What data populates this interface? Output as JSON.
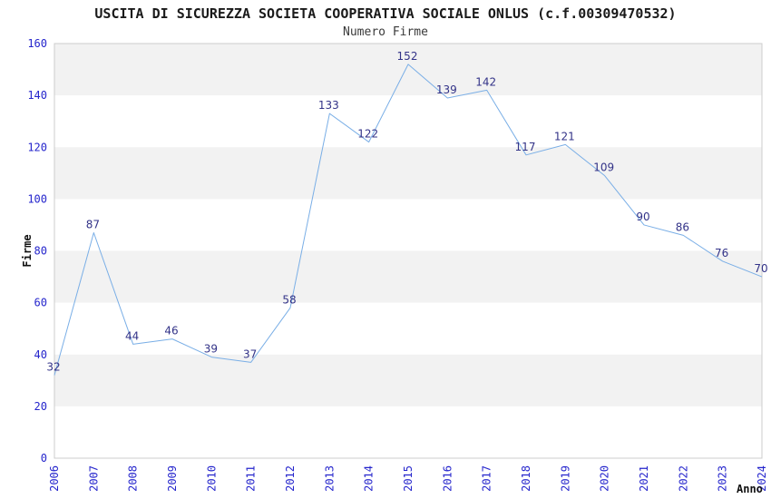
{
  "chart_data": {
    "type": "line",
    "title": "USCITA DI SICUREZZA SOCIETA COOPERATIVA SOCIALE ONLUS (c.f.00309470532)",
    "subtitle": "Numero Firme",
    "xlabel": "Anno",
    "ylabel": "Firme",
    "categories": [
      "2006",
      "2007",
      "2008",
      "2009",
      "2010",
      "2011",
      "2012",
      "2013",
      "2014",
      "2015",
      "2016",
      "2017",
      "2018",
      "2019",
      "2020",
      "2021",
      "2022",
      "2023",
      "2024"
    ],
    "values": [
      32,
      87,
      44,
      46,
      39,
      37,
      58,
      133,
      122,
      152,
      139,
      142,
      117,
      121,
      109,
      90,
      86,
      76,
      70
    ],
    "ylim": [
      0,
      160
    ],
    "ytick_step": 20,
    "legend": "none",
    "grid": "alternating-horizontal-bands",
    "point_labels_visible": true,
    "colors": {
      "line": "#79aee6",
      "band": "#f2f2f2",
      "plot_border": "#cccccc",
      "tick_label": "#2525cc",
      "value_label": "#333388",
      "title_text": "#1a1a1a",
      "axis_title_text": "#111111",
      "background": "#ffffff"
    }
  }
}
